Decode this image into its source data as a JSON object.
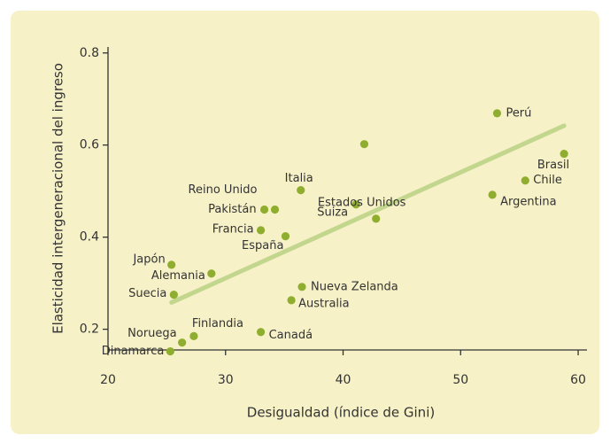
{
  "chart_data": {
    "type": "scatter",
    "x_label": "Desigualdad (índice de Gini)",
    "y_label": "Elasticidad intergeneracional del ingreso",
    "labels": [
      "Perú",
      "Brasil",
      "Chile",
      "Argentina",
      null,
      "Suiza",
      "Estados Unidos",
      "Italia",
      "Reino Unido",
      "Pakistán",
      "Francia",
      "España",
      "Japón",
      "Alemania",
      "Suecia",
      "Nueva Zelanda",
      "Australia",
      "Canadá",
      "Finlandia",
      "Noruega",
      "Dinamarca"
    ],
    "x": [
      53.1,
      58.8,
      55.5,
      52.7,
      41.8,
      41.1,
      42.8,
      36.4,
      34.2,
      33.3,
      33.0,
      35.1,
      25.4,
      28.8,
      25.6,
      36.5,
      35.6,
      33.0,
      27.3,
      26.3,
      25.3
    ],
    "y": [
      0.669,
      0.581,
      0.523,
      0.492,
      0.602,
      0.471,
      0.44,
      0.502,
      0.46,
      0.46,
      0.415,
      0.402,
      0.34,
      0.321,
      0.275,
      0.292,
      0.263,
      0.194,
      0.185,
      0.171,
      0.152
    ],
    "color": "#8fae2f",
    "trend_line": {
      "x": [
        25.4,
        58.8
      ],
      "y": [
        0.258,
        0.642
      ],
      "color": "#c3d68e"
    },
    "xlim": [
      20,
      60.75
    ],
    "ylim": [
      0.155,
      0.813
    ],
    "xticks": [
      20,
      30,
      40,
      50,
      60
    ],
    "yticks": [
      0.2,
      0.4,
      0.6,
      0.8
    ]
  }
}
